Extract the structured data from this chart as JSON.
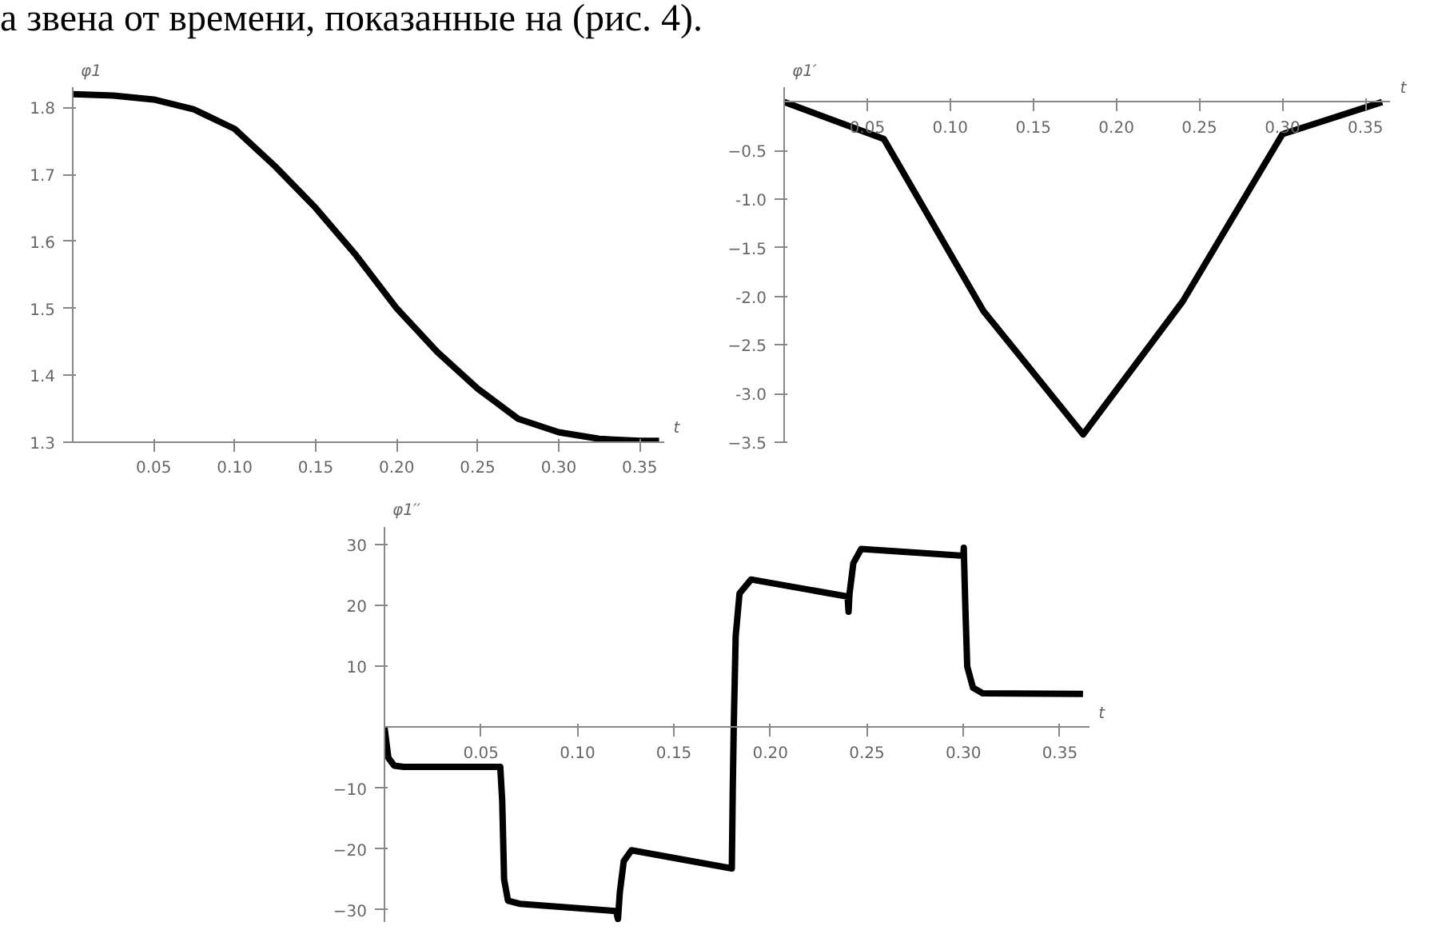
{
  "chart_data": [
    {
      "type": "line",
      "xlabel": "t",
      "ylabel": "φ1",
      "annotations": [
        "а звена от времени, показанные на (рис. 4)."
      ],
      "x": [
        0,
        0.025,
        0.05,
        0.075,
        0.1,
        0.125,
        0.15,
        0.175,
        0.2,
        0.225,
        0.25,
        0.275,
        0.3,
        0.325,
        0.35,
        0.362
      ],
      "values": [
        1.82,
        1.818,
        1.812,
        1.797,
        1.768,
        1.712,
        1.65,
        1.579,
        1.5,
        1.435,
        1.38,
        1.335,
        1.315,
        1.305,
        1.302,
        1.302
      ],
      "color": "#000000",
      "xlim": [
        0,
        0.365
      ],
      "ylim": [
        1.3,
        1.83
      ],
      "xticks": [
        0.05,
        {
          "value": 0.1,
          "label": "0.10"
        },
        0.15,
        {
          "value": 0.2,
          "label": "0.20"
        },
        0.25,
        {
          "value": 0.3,
          "label": "0.30"
        },
        0.35
      ],
      "yticks": [
        1.3,
        1.4,
        1.5,
        1.6,
        1.7,
        1.8
      ],
      "grid": false
    },
    {
      "type": "line",
      "xlabel": "t",
      "ylabel": "φ1′",
      "x": [
        0,
        0.06,
        0.12,
        0.18,
        0.24,
        0.3,
        0.36
      ],
      "values": [
        0,
        -0.38,
        -2.15,
        -3.42,
        -2.05,
        -0.33,
        0
      ],
      "color": "#000000",
      "xlim": [
        0,
        0.365
      ],
      "ylim": [
        -3.5,
        0.15
      ],
      "xticks": [
        0.05,
        {
          "value": 0.1,
          "label": "0.10"
        },
        0.15,
        {
          "value": 0.2,
          "label": "0.20"
        },
        0.25,
        {
          "value": 0.3,
          "label": "0.30"
        },
        0.35
      ],
      "yticks": [
        -0.5,
        {
          "value": -1,
          "label": "-1.0"
        },
        -1.5,
        {
          "value": -2,
          "label": "-2.0"
        },
        -2.5,
        {
          "value": -3,
          "label": "-3.0"
        },
        -3.5
      ],
      "grid": false
    },
    {
      "type": "line",
      "xlabel": "t",
      "ylabel": "φ1′′",
      "x": [
        0,
        0.002,
        0.005,
        0.01,
        0.06,
        0.061,
        0.062,
        0.064,
        0.07,
        0.12,
        0.121,
        0.122,
        0.124,
        0.128,
        0.18,
        0.1805,
        0.181,
        0.182,
        0.184,
        0.19,
        0.24,
        0.2405,
        0.241,
        0.243,
        0.247,
        0.3,
        0.3002,
        0.301,
        0.302,
        0.305,
        0.31,
        0.362
      ],
      "values": [
        0,
        -5,
        -6.3,
        -6.5,
        -6.5,
        -12,
        -25,
        -28.5,
        -29,
        -30.2,
        -31.5,
        -27,
        -22,
        -20.2,
        -23.2,
        -10,
        0,
        15,
        22,
        24.3,
        21.5,
        19,
        22,
        27,
        29.3,
        28.2,
        29.5,
        20,
        10,
        6.5,
        5.6,
        5.5
      ],
      "color": "#000000",
      "xlim": [
        0,
        0.365
      ],
      "ylim": [
        -32,
        33
      ],
      "xticks": [
        0.05,
        {
          "value": 0.1,
          "label": "0.10"
        },
        0.15,
        {
          "value": 0.2,
          "label": "0.20"
        },
        0.25,
        {
          "value": 0.3,
          "label": "0.30"
        },
        0.35
      ],
      "yticks": [
        -30,
        -20,
        -10,
        10,
        20,
        30
      ],
      "grid": false
    }
  ]
}
